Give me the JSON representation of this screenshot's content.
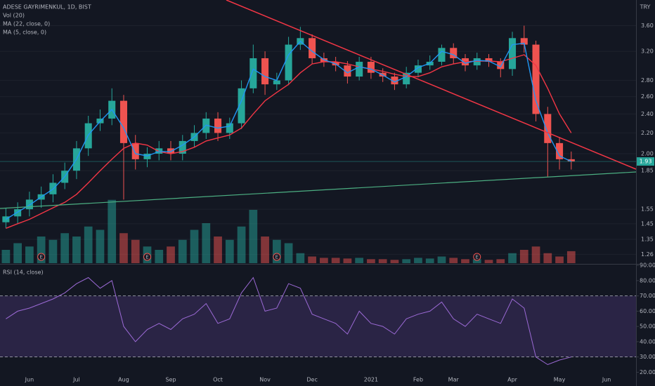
{
  "chart_data": {
    "type": "candlestick",
    "title": "ADESE GAYRIMENKUL, 1D, BIST",
    "currency": "TRY",
    "log_scale": true,
    "grid": true,
    "up_color": "#26a69a",
    "down_color": "#ef5350",
    "categories": [
      null,
      null,
      "Jun",
      null,
      null,
      null,
      "Jul",
      null,
      null,
      null,
      "Aug",
      null,
      null,
      null,
      "Sep",
      null,
      null,
      null,
      "Oct",
      null,
      null,
      null,
      "Nov",
      null,
      null,
      null,
      "Dec",
      null,
      null,
      null,
      null,
      "2021",
      null,
      null,
      null,
      "Feb",
      null,
      null,
      "Mar",
      null,
      null,
      null,
      null,
      "Apr",
      null,
      null,
      null,
      "May",
      null,
      null,
      null,
      "Jun",
      null,
      null
    ],
    "open": [
      1.46,
      1.5,
      1.55,
      1.62,
      1.66,
      1.75,
      1.85,
      2.05,
      2.3,
      2.35,
      2.55,
      2.1,
      1.95,
      2.0,
      2.05,
      2.0,
      2.12,
      2.2,
      2.35,
      2.2,
      2.3,
      2.7,
      3.1,
      2.75,
      2.8,
      3.3,
      3.4,
      3.1,
      3.05,
      3.0,
      2.85,
      3.05,
      2.9,
      2.85,
      2.75,
      2.9,
      3.0,
      3.05,
      3.25,
      3.1,
      3.0,
      3.1,
      3.05,
      2.95,
      3.4,
      3.3,
      2.4,
      2.1,
      1.95,
      null,
      null,
      null,
      null,
      null
    ],
    "high": [
      1.56,
      1.6,
      1.68,
      1.72,
      1.82,
      1.92,
      2.12,
      2.38,
      2.45,
      2.7,
      2.62,
      2.18,
      2.06,
      2.12,
      2.12,
      2.18,
      2.28,
      2.42,
      2.42,
      2.36,
      2.8,
      3.3,
      3.2,
      2.9,
      3.42,
      3.58,
      3.46,
      3.18,
      3.12,
      3.06,
      3.12,
      3.12,
      2.96,
      2.9,
      2.98,
      3.08,
      3.14,
      3.3,
      3.32,
      3.16,
      3.18,
      3.16,
      3.1,
      3.5,
      3.6,
      3.36,
      2.48,
      2.16,
      2.02,
      null,
      null,
      null,
      null,
      null
    ],
    "low": [
      1.42,
      1.45,
      1.5,
      1.56,
      1.6,
      1.7,
      1.78,
      1.98,
      2.22,
      2.28,
      1.62,
      1.86,
      1.88,
      1.94,
      1.94,
      1.94,
      2.06,
      2.14,
      2.12,
      2.14,
      2.24,
      2.64,
      2.62,
      2.68,
      2.74,
      3.22,
      3.02,
      2.98,
      2.92,
      2.76,
      2.8,
      2.82,
      2.78,
      2.68,
      2.7,
      2.84,
      2.94,
      3.0,
      3.02,
      2.92,
      2.94,
      2.98,
      2.84,
      2.86,
      3.18,
      2.32,
      1.8,
      1.86,
      1.86,
      null,
      null,
      null,
      null,
      null
    ],
    "close": [
      1.5,
      1.55,
      1.62,
      1.66,
      1.75,
      1.85,
      2.05,
      2.3,
      2.35,
      2.55,
      2.1,
      1.95,
      2.0,
      2.05,
      2.0,
      2.12,
      2.2,
      2.35,
      2.2,
      2.3,
      2.7,
      3.1,
      2.75,
      2.8,
      3.3,
      3.4,
      3.1,
      3.05,
      3.0,
      2.85,
      3.05,
      2.9,
      2.85,
      2.75,
      2.9,
      3.0,
      3.05,
      3.25,
      3.1,
      3.0,
      3.1,
      3.05,
      2.95,
      3.4,
      3.3,
      2.4,
      2.1,
      1.95,
      1.93,
      null,
      null,
      null,
      null,
      null
    ],
    "ylim": [
      1.21,
      4.05
    ],
    "yticks": [
      {
        "value": 1.26,
        "label": "1.26"
      },
      {
        "value": 1.35,
        "label": "1.35"
      },
      {
        "value": 1.45,
        "label": "1.45"
      },
      {
        "value": 1.55,
        "label": "1.55"
      },
      {
        "value": 1.85,
        "label": "1.85"
      },
      {
        "value": 2.0,
        "label": "2.00"
      },
      {
        "value": 2.2,
        "label": "2.20"
      },
      {
        "value": 2.4,
        "label": "2.40"
      },
      {
        "value": 2.6,
        "label": "2.60"
      },
      {
        "value": 2.8,
        "label": "2.80"
      },
      {
        "value": 3.2,
        "label": "3.20"
      },
      {
        "value": 3.6,
        "label": "3.60"
      }
    ],
    "series": [
      {
        "name": "MA (22, close, 0)",
        "color": "#f23645",
        "values": [
          1.42,
          1.45,
          1.48,
          1.52,
          1.56,
          1.6,
          1.66,
          1.75,
          1.85,
          1.95,
          2.05,
          2.1,
          2.08,
          2.02,
          2.0,
          2.02,
          2.06,
          2.12,
          2.15,
          2.18,
          2.25,
          2.4,
          2.55,
          2.65,
          2.75,
          2.9,
          3.02,
          3.05,
          3.05,
          3.02,
          2.98,
          2.95,
          2.92,
          2.88,
          2.85,
          2.85,
          2.9,
          2.98,
          3.02,
          3.05,
          3.06,
          3.06,
          3.05,
          3.1,
          3.15,
          3.0,
          2.7,
          2.4,
          2.2,
          null,
          null,
          null,
          null,
          null
        ]
      },
      {
        "name": "MA (5, close, 0)",
        "color": "#2196f3",
        "values": [
          1.48,
          1.53,
          1.58,
          1.64,
          1.7,
          1.8,
          1.95,
          2.18,
          2.32,
          2.45,
          2.25,
          2.0,
          1.98,
          2.02,
          2.02,
          2.08,
          2.16,
          2.28,
          2.25,
          2.27,
          2.55,
          2.95,
          2.85,
          2.8,
          3.15,
          3.35,
          3.2,
          3.08,
          3.02,
          2.9,
          2.98,
          2.95,
          2.87,
          2.78,
          2.85,
          2.97,
          3.03,
          3.2,
          3.15,
          3.03,
          3.07,
          3.06,
          2.98,
          3.3,
          3.32,
          2.55,
          2.2,
          1.98,
          1.93,
          null,
          null,
          null,
          null,
          null
        ]
      }
    ],
    "volume": {
      "name": "Vol (20)",
      "vlim": [
        0,
        100
      ],
      "values": [
        20,
        30,
        25,
        40,
        35,
        45,
        40,
        55,
        50,
        95,
        45,
        35,
        25,
        20,
        25,
        35,
        50,
        60,
        40,
        35,
        55,
        80,
        40,
        35,
        30,
        15,
        10,
        8,
        8,
        7,
        8,
        6,
        6,
        5,
        6,
        8,
        7,
        10,
        8,
        6,
        6,
        5,
        6,
        15,
        20,
        25,
        15,
        10,
        18,
        null,
        null,
        null,
        null,
        null
      ]
    },
    "earnings": [
      null,
      null,
      null,
      "E",
      null,
      null,
      null,
      null,
      null,
      null,
      null,
      null,
      "E",
      null,
      null,
      null,
      null,
      null,
      null,
      null,
      null,
      null,
      null,
      "E",
      null,
      null,
      null,
      null,
      null,
      null,
      null,
      null,
      null,
      null,
      null,
      null,
      null,
      null,
      null,
      null,
      "E",
      null,
      null,
      null,
      null,
      null,
      null,
      null,
      null,
      null,
      null,
      null,
      null,
      null
    ],
    "rsi": {
      "name": "RSI (14, close)",
      "color": "#9c6ad6",
      "values": [
        55,
        60,
        62,
        65,
        68,
        72,
        78,
        82,
        75,
        80,
        50,
        40,
        48,
        52,
        48,
        55,
        58,
        65,
        52,
        55,
        72,
        82,
        60,
        62,
        78,
        75,
        58,
        55,
        52,
        45,
        60,
        52,
        50,
        45,
        55,
        58,
        60,
        66,
        55,
        50,
        58,
        55,
        52,
        68,
        62,
        30,
        25,
        28,
        30,
        null,
        null,
        null,
        null,
        null
      ],
      "ylim": [
        11,
        90.5
      ],
      "levels": [
        30,
        70
      ],
      "yticks": [
        {
          "value": 20,
          "label": "20.00"
        },
        {
          "value": 30,
          "label": "30.00"
        },
        {
          "value": 40,
          "label": "40.00"
        },
        {
          "value": 50,
          "label": "50.00"
        },
        {
          "value": 60,
          "label": "60.00"
        },
        {
          "value": 70,
          "label": "70.00"
        },
        {
          "value": 80,
          "label": "80.00"
        },
        {
          "value": 90,
          "label": "90.00"
        }
      ]
    }
  }
}
